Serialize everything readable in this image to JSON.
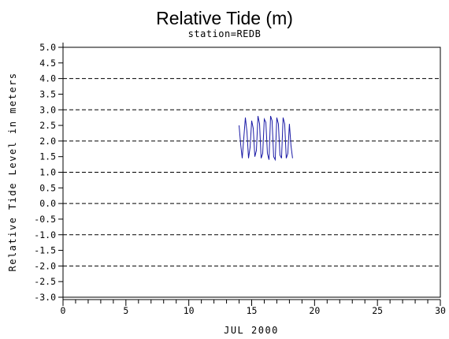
{
  "chart_data": {
    "type": "line",
    "title": "Relative Tide (m)",
    "subtitle": "station=REDB",
    "xlabel": "JUL 2000",
    "ylabel": "Relative Tide Level in meters",
    "xlim": [
      0,
      30
    ],
    "ylim": [
      -3.0,
      5.0
    ],
    "x_ticks": [
      0,
      5,
      10,
      15,
      20,
      25,
      30
    ],
    "x_tick_labels": [
      "0",
      "5",
      "10",
      "15",
      "20",
      "25",
      "30"
    ],
    "y_ticks": [
      5.0,
      4.5,
      4.0,
      3.5,
      3.0,
      2.5,
      2.0,
      1.5,
      1.0,
      0.5,
      0.0,
      -0.5,
      -1.0,
      -1.5,
      -2.0,
      -2.5,
      -3.0
    ],
    "y_tick_labels": [
      "5.0",
      "4.5",
      "4.0",
      "3.5",
      "3.0",
      "2.5",
      "2.0",
      "1.5",
      "1.0",
      "0.5",
      "0.0",
      "-0.5",
      "-1.0",
      "-1.5",
      "-2.0",
      "-2.5",
      "-3.0"
    ],
    "gridlines_y": [
      5.0,
      4.0,
      3.0,
      2.0,
      1.0,
      0.0,
      -1.0,
      -2.0,
      -3.0
    ],
    "grid": "horizontal dashed at integer levels",
    "series": [
      {
        "color": "#1a1aa6",
        "x": [
          14.0,
          14.125,
          14.25,
          14.375,
          14.5,
          14.625,
          14.75,
          14.875,
          15.0,
          15.125,
          15.25,
          15.375,
          15.5,
          15.625,
          15.75,
          15.875,
          16.0,
          16.125,
          16.25,
          16.375,
          16.5,
          16.625,
          16.75,
          16.875,
          17.0,
          17.125,
          17.25,
          17.375,
          17.5,
          17.625,
          17.75,
          17.875,
          18.0,
          18.125,
          18.25
        ],
        "y": [
          2.5,
          1.9,
          1.45,
          2.1,
          2.75,
          2.3,
          1.45,
          1.8,
          2.65,
          2.4,
          1.5,
          1.7,
          2.8,
          2.55,
          1.45,
          1.6,
          2.7,
          2.6,
          1.6,
          1.4,
          2.8,
          2.65,
          1.5,
          1.4,
          2.75,
          2.55,
          1.55,
          1.45,
          2.75,
          2.55,
          1.45,
          1.6,
          2.55,
          1.85,
          1.45
        ]
      }
    ]
  }
}
